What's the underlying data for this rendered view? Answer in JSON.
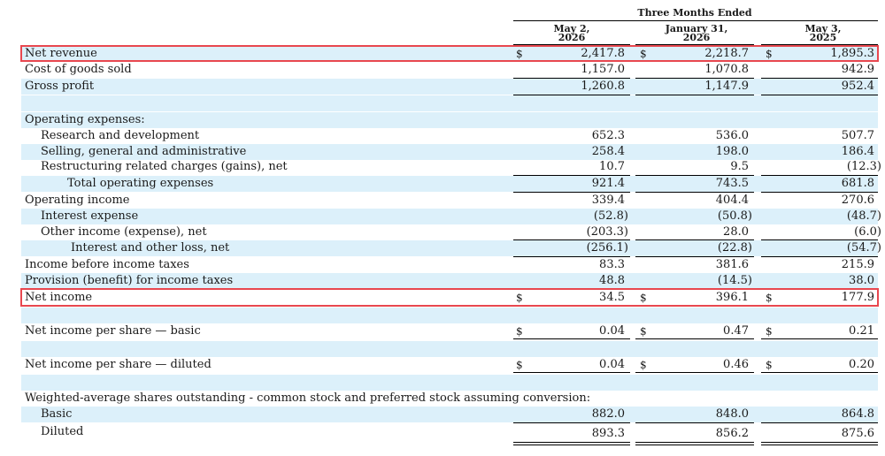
{
  "header": {
    "group_title": "Three Months Ended",
    "col1_line1": "May 2,",
    "col1_line2": "2026",
    "col2_line1": "January 31,",
    "col2_line2": "2026",
    "col3_line1": "May 3,",
    "col3_line2": "2025"
  },
  "rows": [
    {
      "label": "Net revenue",
      "c1": "2,417.8",
      "c2": "2,218.7",
      "c3": "1,895.3",
      "dollar": "$"
    },
    {
      "label": "Cost of goods sold",
      "c1": "1,157.0",
      "c2": "1,070.8",
      "c3": "942.9"
    },
    {
      "label": "Gross profit",
      "c1": "1,260.8",
      "c2": "1,147.9",
      "c3": "952.4"
    },
    {
      "label": "Operating expenses:"
    },
    {
      "label": "Research and development",
      "c1": "652.3",
      "c2": "536.0",
      "c3": "507.7"
    },
    {
      "label": "Selling, general and administrative",
      "c1": "258.4",
      "c2": "198.0",
      "c3": "186.4"
    },
    {
      "label": "Restructuring related charges (gains), net",
      "c1": "10.7",
      "c2": "9.5",
      "c3": "(12.3)"
    },
    {
      "label": "Total operating expenses",
      "c1": "921.4",
      "c2": "743.5",
      "c3": "681.8"
    },
    {
      "label": "Operating income",
      "c1": "339.4",
      "c2": "404.4",
      "c3": "270.6"
    },
    {
      "label": "Interest expense",
      "c1": "(52.8)",
      "c2": "(50.8)",
      "c3": "(48.7)"
    },
    {
      "label": "Other income (expense), net",
      "c1": "(203.3)",
      "c2": "28.0",
      "c3": "(6.0)"
    },
    {
      "label": "Interest and other loss, net",
      "c1": "(256.1)",
      "c2": "(22.8)",
      "c3": "(54.7)"
    },
    {
      "label": "Income before income taxes",
      "c1": "83.3",
      "c2": "381.6",
      "c3": "215.9"
    },
    {
      "label": "Provision (benefit) for income taxes",
      "c1": "48.8",
      "c2": "(14.5)",
      "c3": "38.0"
    },
    {
      "label": "Net income",
      "c1": "34.5",
      "c2": "396.1",
      "c3": "177.9",
      "dollar": "$"
    },
    {
      "label": "Net income per share — basic",
      "c1": "0.04",
      "c2": "0.47",
      "c3": "0.21",
      "dollar": "$"
    },
    {
      "label": "Net income per share — diluted",
      "c1": "0.04",
      "c2": "0.46",
      "c3": "0.20",
      "dollar": "$"
    },
    {
      "label": "Weighted-average shares outstanding - common stock and preferred stock assuming conversion:"
    },
    {
      "label": "Basic",
      "c1": "882.0",
      "c2": "848.0",
      "c3": "864.8"
    },
    {
      "label": "Diluted",
      "c1": "893.3",
      "c2": "856.2",
      "c3": "875.6"
    }
  ],
  "highlight_color": "#e8474f",
  "shade_color": "#dcf0fa"
}
